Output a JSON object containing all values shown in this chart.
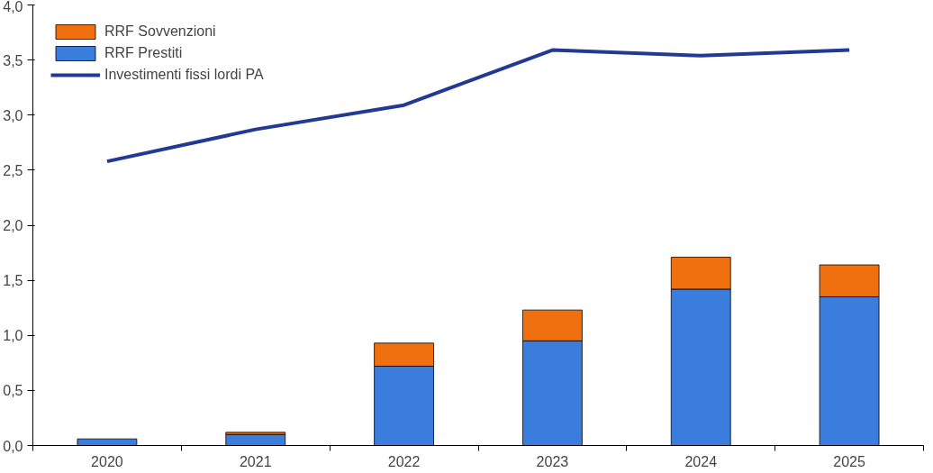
{
  "chart_data": {
    "type": "bar",
    "stacked": true,
    "categories": [
      "2020",
      "2021",
      "2022",
      "2023",
      "2024",
      "2025"
    ],
    "series": [
      {
        "name": "RRF Prestiti",
        "color": "#3a7ddc",
        "values": [
          0.06,
          0.1,
          0.72,
          0.95,
          1.42,
          1.35
        ]
      },
      {
        "name": "RRF Sovvenzioni",
        "color": "#f07010",
        "values": [
          null,
          0.02,
          0.21,
          0.28,
          0.29,
          0.29
        ]
      },
      {
        "name": "Investimenti fissi lordi PA",
        "color": "#223a94",
        "type": "line",
        "values": [
          2.58,
          2.87,
          3.09,
          3.59,
          3.54,
          3.59
        ]
      }
    ],
    "ylim": [
      0,
      4
    ],
    "yticks": [
      {
        "value": 0,
        "label": "0,0"
      },
      {
        "value": 0.5,
        "label": "0,5"
      },
      {
        "value": 1,
        "label": "1,0"
      },
      {
        "value": 1.5,
        "label": "1,5"
      },
      {
        "value": 2,
        "label": "2,0"
      },
      {
        "value": 2.5,
        "label": "2,5"
      },
      {
        "value": 3,
        "label": "3,0"
      },
      {
        "value": 3.5,
        "label": "3,5"
      },
      {
        "value": 4,
        "label": "4,0"
      }
    ],
    "grid": false,
    "legend": "top left",
    "marker": "none",
    "line_style": "solid"
  }
}
